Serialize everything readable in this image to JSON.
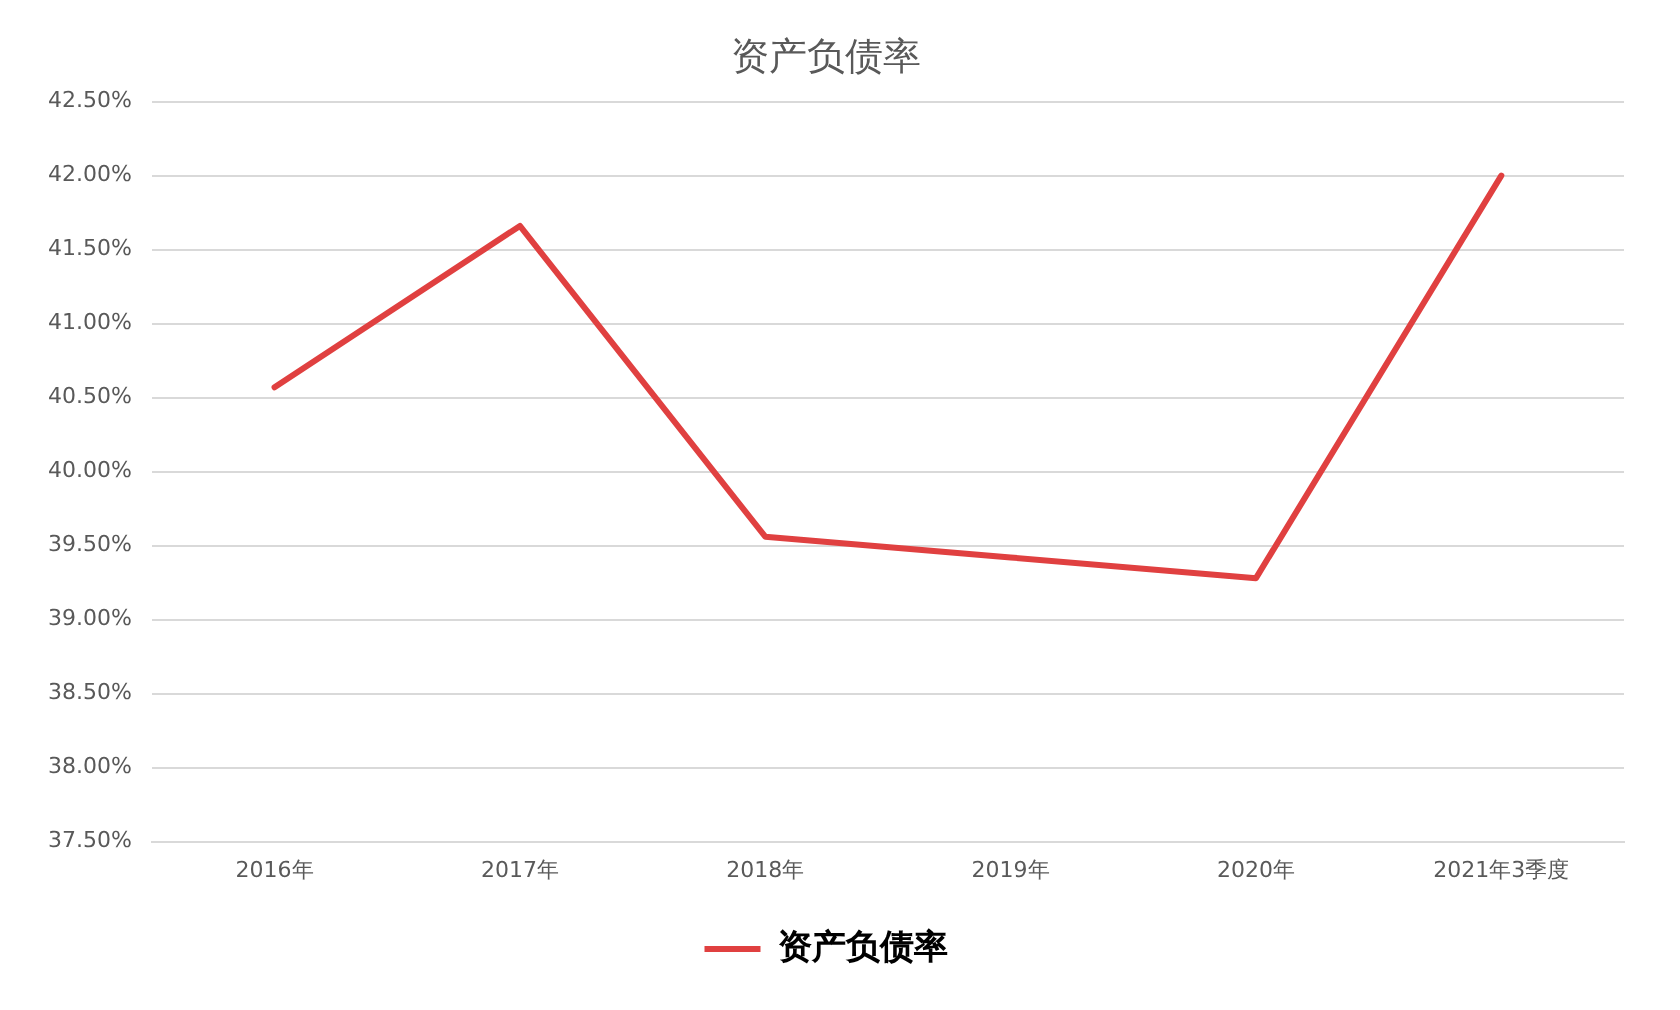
{
  "chart_data": {
    "type": "line",
    "title": "资产负债率",
    "categories": [
      "2016年",
      "2017年",
      "2018年",
      "2019年",
      "2020年",
      "2021年3季度"
    ],
    "series": [
      {
        "name": "资产负债率",
        "color": "#e04040",
        "values": [
          40.57,
          41.66,
          39.56,
          39.42,
          39.28,
          42.0
        ]
      }
    ],
    "ylim": [
      37.5,
      42.5
    ],
    "yticks": [
      {
        "value": 37.5,
        "label": "37.50%"
      },
      {
        "value": 38,
        "label": "38.00%"
      },
      {
        "value": 38.5,
        "label": "38.50%"
      },
      {
        "value": 39,
        "label": "39.00%"
      },
      {
        "value": 39.5,
        "label": "39.50%"
      },
      {
        "value": 40,
        "label": "40.00%"
      },
      {
        "value": 40.5,
        "label": "40.50%"
      },
      {
        "value": 41,
        "label": "41.00%"
      },
      {
        "value": 41.5,
        "label": "41.50%"
      },
      {
        "value": 42,
        "label": "42.00%"
      },
      {
        "value": 42.5,
        "label": "42.50%"
      }
    ],
    "grid": "y",
    "legend": "bottom",
    "marker": "none",
    "line_style": "solid"
  }
}
